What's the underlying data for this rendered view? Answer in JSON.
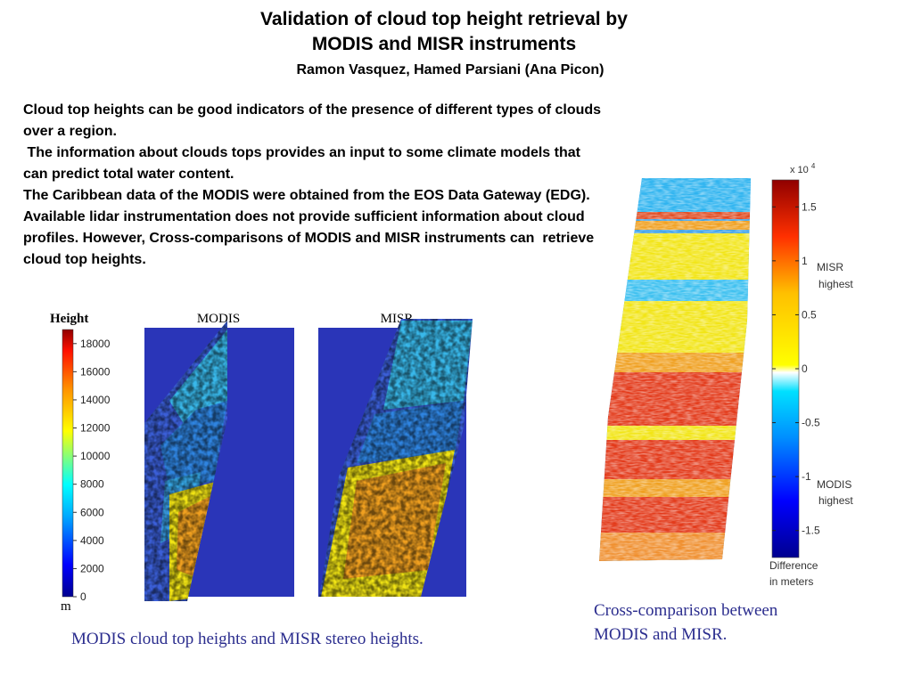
{
  "header": {
    "title_line1": "Validation of cloud top height retrieval by",
    "title_line2": "MODIS and MISR instruments",
    "authors": "Ramon Vasquez, Hamed Parsiani (Ana Picon)"
  },
  "body": {
    "paragraphs": [
      "Cloud top heights can be good indicators of the presence of different types of clouds over a region.",
      " The information about clouds tops provides an input to some climate models that can predict total water content.",
      "The Caribbean data of the MODIS were obtained from the EOS Data Gateway (EDG).",
      "Available lidar instrumentation does not provide sufficient information about cloud profiles. However, Cross-comparisons of MODIS and MISR instruments can  retrieve cloud top heights."
    ]
  },
  "left_figure": {
    "colorbar_title": "Height",
    "unit": "m",
    "ticks": [
      "18000",
      "16000",
      "14000",
      "12000",
      "10000",
      "8000",
      "6000",
      "4000",
      "2000",
      "0"
    ],
    "panel_titles": [
      "MODIS",
      "MISR"
    ],
    "caption": "MODIS cloud top heights and MISR stereo heights."
  },
  "right_figure": {
    "exponent_label": "x 10",
    "exponent_power": "4",
    "ticks": [
      "1.5",
      "1",
      "0.5",
      "0",
      "-0.5",
      "-1",
      "-1.5"
    ],
    "misr_label": [
      "MISR",
      "highest"
    ],
    "modis_label": [
      "MODIS",
      "highest"
    ],
    "diff_label": [
      "Difference",
      "in meters"
    ],
    "caption_line1": "Cross-comparison between",
    "caption_line2": "MODIS and MISR."
  },
  "colors": {
    "caption": "#2b2d8e",
    "map_background": "#2a35b8",
    "cloud_cyan": "#39b8ea",
    "cloud_yellow": "#f2e515",
    "cloud_orange": "#f0a020",
    "cloud_red": "#e33a1a"
  }
}
